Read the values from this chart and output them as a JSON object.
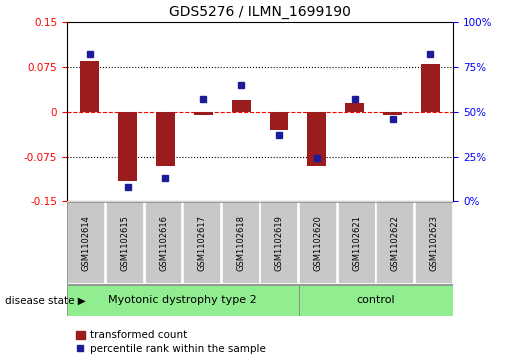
{
  "title": "GDS5276 / ILMN_1699190",
  "samples": [
    "GSM1102614",
    "GSM1102615",
    "GSM1102616",
    "GSM1102617",
    "GSM1102618",
    "GSM1102619",
    "GSM1102620",
    "GSM1102621",
    "GSM1102622",
    "GSM1102623"
  ],
  "red_values": [
    0.085,
    -0.115,
    -0.09,
    -0.005,
    0.02,
    -0.03,
    -0.09,
    0.015,
    -0.005,
    0.08
  ],
  "blue_values": [
    0.82,
    0.08,
    0.13,
    0.57,
    0.65,
    0.37,
    0.24,
    0.57,
    0.46,
    0.82
  ],
  "ylim_left": [
    -0.15,
    0.15
  ],
  "yticks_left": [
    -0.15,
    -0.075,
    0.0,
    0.075,
    0.15
  ],
  "ytick_labels_left": [
    "-0.15",
    "-0.075",
    "0",
    "0.075",
    "0.15"
  ],
  "yticks_right": [
    0.0,
    0.25,
    0.5,
    0.75,
    1.0
  ],
  "ytick_labels_right": [
    "0%",
    "25%",
    "50%",
    "75%",
    "100%"
  ],
  "bar_color": "#9B1C1C",
  "dot_color": "#1C1C9B",
  "group1_label": "Myotonic dystrophy type 2",
  "group1_count": 6,
  "group2_label": "control",
  "group2_count": 4,
  "group_color": "#90EE90",
  "sample_box_color": "#C8C8C8",
  "disease_state_label": "disease state",
  "legend_red_label": "transformed count",
  "legend_blue_label": "percentile rank within the sample",
  "bar_width": 0.5,
  "title_fontsize": 10,
  "tick_fontsize": 7.5,
  "sample_fontsize": 6,
  "group_fontsize": 8,
  "legend_fontsize": 7.5
}
